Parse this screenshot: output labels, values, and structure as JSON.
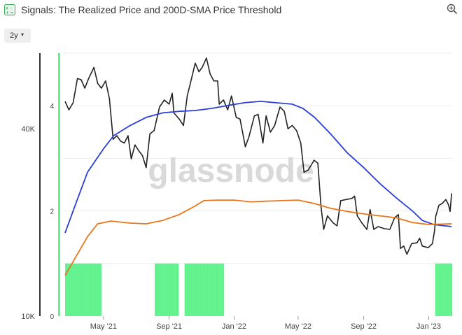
{
  "header": {
    "title": "Signals: The Realized Price and 200D-SMA Price Threshold",
    "app_icon": "signals-icon",
    "zoom_icon": "zoom-in-icon"
  },
  "controls": {
    "range_label": "2y",
    "range_caret": "▾"
  },
  "watermark": "glassnode",
  "chart_data": {
    "type": "line",
    "title": "Signals: The Realized Price and 200D-SMA Price Threshold",
    "x_range": [
      "2021-02-14",
      "2023-02-14"
    ],
    "x_ticks": [
      "May '21",
      "Sep '21",
      "Jan '22",
      "May '22",
      "Sep '22",
      "Jan '23"
    ],
    "left_axis": {
      "scale": "log",
      "ticks": [
        "10K",
        "40K"
      ],
      "range": [
        10000,
        70000
      ]
    },
    "right_axis": {
      "ticks": [
        "0",
        "2",
        "4"
      ],
      "range": [
        0,
        5
      ]
    },
    "series": [
      {
        "name": "Price",
        "color": "#222222",
        "axis": "left",
        "points": [
          [
            "2021-02-18",
            49000
          ],
          [
            "2021-02-25",
            46000
          ],
          [
            "2021-03-05",
            48500
          ],
          [
            "2021-03-13",
            58000
          ],
          [
            "2021-03-20",
            57500
          ],
          [
            "2021-03-27",
            54000
          ],
          [
            "2021-04-03",
            58000
          ],
          [
            "2021-04-13",
            63000
          ],
          [
            "2021-04-20",
            56000
          ],
          [
            "2021-04-27",
            54000
          ],
          [
            "2021-05-05",
            57000
          ],
          [
            "2021-05-12",
            50000
          ],
          [
            "2021-05-19",
            37000
          ],
          [
            "2021-05-26",
            38000
          ],
          [
            "2021-06-02",
            36500
          ],
          [
            "2021-06-09",
            36000
          ],
          [
            "2021-06-16",
            38000
          ],
          [
            "2021-06-22",
            32000
          ],
          [
            "2021-06-29",
            35500
          ],
          [
            "2021-07-06",
            34000
          ],
          [
            "2021-07-13",
            32800
          ],
          [
            "2021-07-20",
            30000
          ],
          [
            "2021-07-27",
            38500
          ],
          [
            "2021-08-04",
            39500
          ],
          [
            "2021-08-14",
            47000
          ],
          [
            "2021-08-23",
            49500
          ],
          [
            "2021-09-01",
            48000
          ],
          [
            "2021-09-07",
            52000
          ],
          [
            "2021-09-10",
            45000
          ],
          [
            "2021-09-20",
            43000
          ],
          [
            "2021-09-28",
            41000
          ],
          [
            "2021-10-05",
            51000
          ],
          [
            "2021-10-12",
            57000
          ],
          [
            "2021-10-20",
            65000
          ],
          [
            "2021-10-27",
            61000
          ],
          [
            "2021-11-02",
            63000
          ],
          [
            "2021-11-10",
            67500
          ],
          [
            "2021-11-17",
            60000
          ],
          [
            "2021-11-24",
            57000
          ],
          [
            "2021-12-01",
            57000
          ],
          [
            "2021-12-04",
            48000
          ],
          [
            "2021-12-12",
            49500
          ],
          [
            "2021-12-20",
            46000
          ],
          [
            "2021-12-27",
            51000
          ],
          [
            "2022-01-05",
            43500
          ],
          [
            "2022-01-12",
            43000
          ],
          [
            "2022-01-22",
            35000
          ],
          [
            "2022-01-29",
            37800
          ],
          [
            "2022-02-08",
            44000
          ],
          [
            "2022-02-15",
            44500
          ],
          [
            "2022-02-24",
            36000
          ],
          [
            "2022-03-02",
            44000
          ],
          [
            "2022-03-10",
            39000
          ],
          [
            "2022-03-18",
            41000
          ],
          [
            "2022-03-28",
            47000
          ],
          [
            "2022-04-05",
            45500
          ],
          [
            "2022-04-12",
            40000
          ],
          [
            "2022-04-20",
            41000
          ],
          [
            "2022-04-28",
            39500
          ],
          [
            "2022-05-06",
            36000
          ],
          [
            "2022-05-12",
            29000
          ],
          [
            "2022-05-20",
            29500
          ],
          [
            "2022-05-31",
            31700
          ],
          [
            "2022-06-07",
            31000
          ],
          [
            "2022-06-13",
            22500
          ],
          [
            "2022-06-18",
            19000
          ],
          [
            "2022-06-25",
            21000
          ],
          [
            "2022-07-05",
            20000
          ],
          [
            "2022-07-13",
            19500
          ],
          [
            "2022-07-20",
            23500
          ],
          [
            "2022-07-30",
            23700
          ],
          [
            "2022-08-10",
            23900
          ],
          [
            "2022-08-15",
            24300
          ],
          [
            "2022-08-20",
            21000
          ],
          [
            "2022-08-28",
            20000
          ],
          [
            "2022-09-07",
            19000
          ],
          [
            "2022-09-13",
            22000
          ],
          [
            "2022-09-20",
            19000
          ],
          [
            "2022-09-28",
            19400
          ],
          [
            "2022-10-10",
            19100
          ],
          [
            "2022-10-20",
            19000
          ],
          [
            "2022-10-29",
            20700
          ],
          [
            "2022-11-05",
            21200
          ],
          [
            "2022-11-09",
            16500
          ],
          [
            "2022-11-15",
            16800
          ],
          [
            "2022-11-21",
            15800
          ],
          [
            "2022-11-30",
            17100
          ],
          [
            "2022-12-10",
            17200
          ],
          [
            "2022-12-15",
            17800
          ],
          [
            "2022-12-20",
            16800
          ],
          [
            "2022-12-31",
            16600
          ],
          [
            "2023-01-08",
            17100
          ],
          [
            "2023-01-12",
            18900
          ],
          [
            "2023-01-14",
            20900
          ],
          [
            "2023-01-20",
            22700
          ],
          [
            "2023-01-26",
            23000
          ],
          [
            "2023-02-02",
            23700
          ],
          [
            "2023-02-07",
            22800
          ],
          [
            "2023-02-10",
            21700
          ],
          [
            "2023-02-13",
            24800
          ]
        ]
      },
      {
        "name": "200D-SMA",
        "color": "#2b3fd6",
        "axis": "left",
        "points": [
          [
            "2021-02-18",
            18500
          ],
          [
            "2021-03-10",
            23000
          ],
          [
            "2021-04-01",
            29000
          ],
          [
            "2021-05-01",
            34500
          ],
          [
            "2021-05-20",
            38000
          ],
          [
            "2021-06-20",
            41000
          ],
          [
            "2021-07-20",
            43500
          ],
          [
            "2021-08-20",
            45000
          ],
          [
            "2021-09-20",
            45500
          ],
          [
            "2021-10-20",
            45800
          ],
          [
            "2021-11-20",
            46500
          ],
          [
            "2021-12-20",
            47500
          ],
          [
            "2022-01-20",
            48500
          ],
          [
            "2022-02-20",
            49000
          ],
          [
            "2022-03-20",
            48500
          ],
          [
            "2022-04-20",
            48000
          ],
          [
            "2022-05-10",
            46500
          ],
          [
            "2022-06-01",
            43500
          ],
          [
            "2022-07-01",
            38500
          ],
          [
            "2022-08-01",
            33500
          ],
          [
            "2022-09-01",
            30000
          ],
          [
            "2022-10-01",
            26700
          ],
          [
            "2022-11-01",
            24000
          ],
          [
            "2022-12-01",
            21800
          ],
          [
            "2022-12-20",
            20300
          ],
          [
            "2023-01-10",
            19700
          ],
          [
            "2023-02-13",
            19400
          ]
        ]
      },
      {
        "name": "Realized Price",
        "color": "#e8761a",
        "axis": "left",
        "points": [
          [
            "2021-02-18",
            13500
          ],
          [
            "2021-03-10",
            15500
          ],
          [
            "2021-04-01",
            18000
          ],
          [
            "2021-04-20",
            19800
          ],
          [
            "2021-05-15",
            20200
          ],
          [
            "2021-06-20",
            19900
          ],
          [
            "2021-07-20",
            19800
          ],
          [
            "2021-08-20",
            20300
          ],
          [
            "2021-09-20",
            21200
          ],
          [
            "2021-10-20",
            22600
          ],
          [
            "2021-11-05",
            23500
          ],
          [
            "2021-12-01",
            23600
          ],
          [
            "2022-01-01",
            23600
          ],
          [
            "2022-02-01",
            23300
          ],
          [
            "2022-03-01",
            23400
          ],
          [
            "2022-04-01",
            23500
          ],
          [
            "2022-05-01",
            23600
          ],
          [
            "2022-06-01",
            23000
          ],
          [
            "2022-07-01",
            22200
          ],
          [
            "2022-08-01",
            21700
          ],
          [
            "2022-09-01",
            21300
          ],
          [
            "2022-10-01",
            21000
          ],
          [
            "2022-11-01",
            20700
          ],
          [
            "2022-12-01",
            20000
          ],
          [
            "2023-01-01",
            19700
          ],
          [
            "2023-02-13",
            19800
          ]
        ]
      }
    ],
    "signal_periods": {
      "name": "Signal",
      "color": "#5ef28a",
      "axis": "right",
      "value": 1,
      "ranges": [
        [
          "2021-02-18",
          "2021-04-26"
        ],
        [
          "2021-08-05",
          "2021-09-18"
        ],
        [
          "2021-09-30",
          "2021-12-12"
        ],
        [
          "2023-01-13",
          "2023-02-13"
        ]
      ]
    },
    "grid": true,
    "legend": "none"
  }
}
